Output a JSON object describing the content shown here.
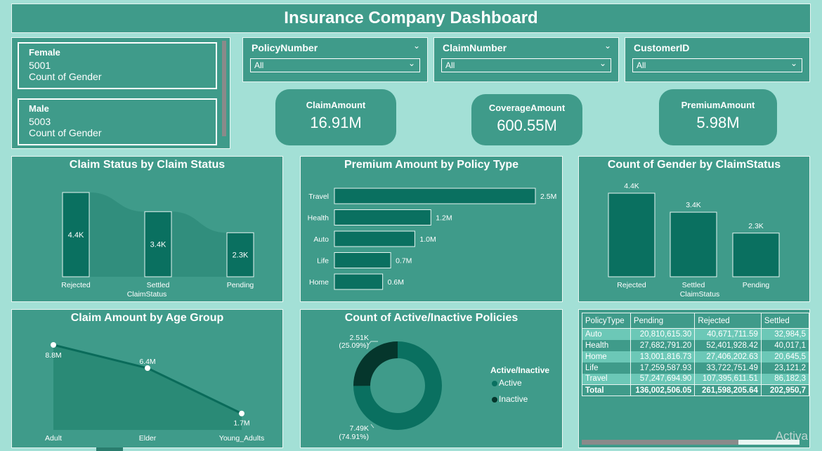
{
  "title": "Insurance Company Dashboard",
  "gender_cards": [
    {
      "label": "Female",
      "value": "5001",
      "caption": "Count of Gender"
    },
    {
      "label": "Male",
      "value": "5003",
      "caption": "Count of Gender"
    }
  ],
  "slicers": [
    {
      "title": "PolicyNumber",
      "value": "All"
    },
    {
      "title": "ClaimNumber",
      "value": "All"
    },
    {
      "title": "CustomerID",
      "value": "All"
    }
  ],
  "kpis": [
    {
      "label": "ClaimAmount",
      "value": "16.91M"
    },
    {
      "label": "CoverageAmount",
      "value": "600.55M"
    },
    {
      "label": "PremiumAmount",
      "value": "5.98M"
    }
  ],
  "colors": {
    "panel": "#3f9b8a",
    "bar": "#0a7060",
    "ribbon": "#1f8a75",
    "background": "#a3e0d6",
    "dark": "#05362c"
  },
  "chart_data": [
    {
      "type": "bar",
      "title": "Claim Status by Claim Status",
      "xlabel": "ClaimStatus",
      "categories": [
        "Rejected",
        "Settled",
        "Pending"
      ],
      "values": [
        4400,
        3400,
        2300
      ],
      "labels": [
        "4.4K",
        "3.4K",
        "2.3K"
      ]
    },
    {
      "type": "bar",
      "title": "Premium Amount by Policy Type",
      "orientation": "horizontal",
      "categories": [
        "Travel",
        "Health",
        "Auto",
        "Life",
        "Home"
      ],
      "values": [
        2.5,
        1.2,
        1.0,
        0.7,
        0.6
      ],
      "labels": [
        "2.5M",
        "1.2M",
        "1.0M",
        "0.7M",
        "0.6M"
      ]
    },
    {
      "type": "bar",
      "title": "Count of Gender by ClaimStatus",
      "xlabel": "ClaimStatus",
      "categories": [
        "Rejected",
        "Settled",
        "Pending"
      ],
      "values": [
        4400,
        3400,
        2300
      ],
      "labels": [
        "4.4K",
        "3.4K",
        "2.3K"
      ]
    },
    {
      "type": "area",
      "title": "Claim Amount by Age Group",
      "categories": [
        "Adult",
        "Elder",
        "Young_Adults"
      ],
      "values": [
        8.8,
        6.4,
        1.7
      ],
      "labels": [
        "8.8M",
        "6.4M",
        "1.7M"
      ]
    },
    {
      "type": "pie",
      "title": "Count of Active/Inactive Policies",
      "legend_title": "Active/Inactive",
      "legend_position": "right",
      "slices": [
        {
          "name": "Active",
          "value": 7490,
          "label": "7.49K",
          "pct": "(74.91%)"
        },
        {
          "name": "Inactive",
          "value": 2510,
          "label": "2.51K",
          "pct": "(25.09%)"
        }
      ]
    },
    {
      "type": "table",
      "columns": [
        "PolicyType",
        "Pending",
        "Rejected",
        "Settled"
      ],
      "rows": [
        [
          "Auto",
          "20,810,615.30",
          "40,671,711.59",
          "32,984,5"
        ],
        [
          "Health",
          "27,682,791.20",
          "52,401,928.42",
          "40,017,1"
        ],
        [
          "Home",
          "13,001,816.73",
          "27,406,202.63",
          "20,645,5"
        ],
        [
          "Life",
          "17,259,587.93",
          "33,722,751.49",
          "23,121,2"
        ],
        [
          "Travel",
          "57,247,694.90",
          "107,395,611.51",
          "86,182,3"
        ]
      ],
      "total": [
        "Total",
        "136,002,506.05",
        "261,598,205.64",
        "202,950,7"
      ]
    }
  ],
  "watermark": "Activa"
}
